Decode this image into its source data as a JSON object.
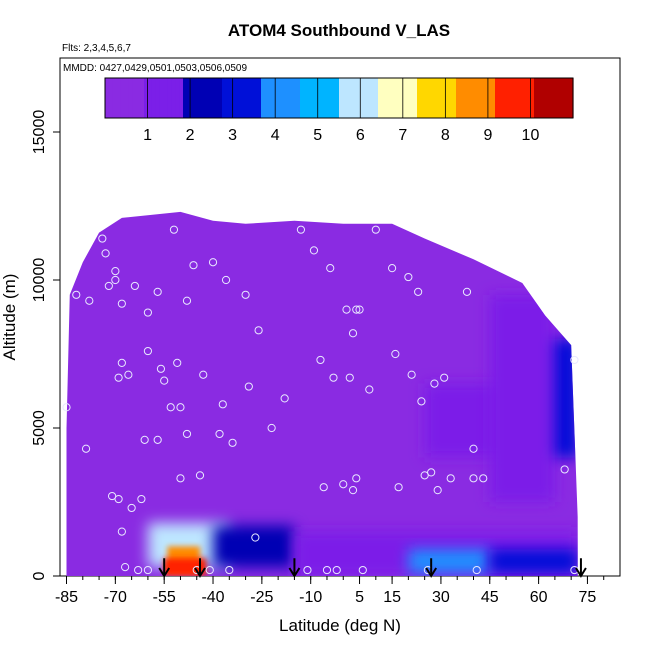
{
  "chart_data": {
    "type": "heatmap",
    "title": "ATOM4 Southbound V_LAS",
    "subtitle_flights": "Flts: 2,3,4,5,6,7",
    "subtitle_dates": "MMDD: 0427,0429,0501,0503,0506,0509",
    "xlabel": "Latitude (deg N)",
    "ylabel": "Altitude (m)",
    "xlim": [
      -87,
      85
    ],
    "ylim": [
      0,
      17500
    ],
    "x_ticks": [
      -85,
      -70,
      -55,
      -40,
      -25,
      -10,
      5,
      15,
      30,
      45,
      60,
      75
    ],
    "x_tick_labels": [
      "-85",
      "-70",
      "-55",
      "-40",
      "-25",
      "-10",
      "5",
      "15",
      "30",
      "45",
      "60",
      "75"
    ],
    "y_ticks": [
      0,
      5000,
      10000,
      15000
    ],
    "y_tick_labels": [
      "0",
      "5000",
      "10000",
      "15000"
    ],
    "colorbar": {
      "min": 0,
      "max": 11,
      "ticks": [
        1,
        2,
        3,
        4,
        5,
        6,
        7,
        8,
        9,
        10
      ],
      "tick_labels": [
        "1",
        "2",
        "3",
        "4",
        "5",
        "6",
        "7",
        "8",
        "9",
        "10"
      ],
      "colors": [
        "#8a2be2",
        "#7b1fe8",
        "#0000b4",
        "#0010d8",
        "#1e90ff",
        "#00b4ff",
        "#bde6ff",
        "#ffffc0",
        "#ffd700",
        "#ff8c00",
        "#ff2000",
        "#b00000"
      ],
      "position": "top"
    },
    "envelope": [
      [
        -85,
        5000
      ],
      [
        -84,
        9500
      ],
      [
        -80,
        10600
      ],
      [
        -75,
        11600
      ],
      [
        -68,
        12100
      ],
      [
        -50,
        12300
      ],
      [
        -40,
        12000
      ],
      [
        -30,
        11900
      ],
      [
        -15,
        12000
      ],
      [
        0,
        11900
      ],
      [
        15,
        11900
      ],
      [
        25,
        11400
      ],
      [
        40,
        10700
      ],
      [
        55,
        9900
      ],
      [
        62,
        8800
      ],
      [
        70,
        7800
      ],
      [
        72,
        2000
      ]
    ],
    "regions": [
      {
        "description": "background",
        "value": 0.3
      },
      {
        "lat_range": [
          -60,
          -35
        ],
        "alt_range": [
          300,
          1800
        ],
        "value": 5.5
      },
      {
        "lat_range": [
          -54,
          -44
        ],
        "alt_range": [
          100,
          1000
        ],
        "value": 8.5
      },
      {
        "lat_range": [
          -55,
          -42
        ],
        "alt_range": [
          0,
          600
        ],
        "value": 9.6
      },
      {
        "lat_range": [
          -40,
          -15
        ],
        "alt_range": [
          300,
          1700
        ],
        "value": 2.0
      },
      {
        "lat_range": [
          -15,
          72
        ],
        "alt_range": [
          0,
          1500
        ],
        "value": 1.5
      },
      {
        "lat_range": [
          20,
          45
        ],
        "alt_range": [
          100,
          900
        ],
        "value": 3.8
      },
      {
        "lat_range": [
          45,
          72
        ],
        "alt_range": [
          100,
          900
        ],
        "value": 3.5
      },
      {
        "lat_range": [
          25,
          60
        ],
        "alt_range": [
          4000,
          6500
        ],
        "value": 1.8
      },
      {
        "lat_range": [
          55,
          72
        ],
        "alt_range": [
          4000,
          8000
        ],
        "value": 3.2
      },
      {
        "lat_range": [
          45,
          65
        ],
        "alt_range": [
          2500,
          9500
        ],
        "value": 1.4
      }
    ],
    "points": [
      [
        -85,
        5700
      ],
      [
        -82,
        9500
      ],
      [
        -79,
        4300
      ],
      [
        -78,
        9300
      ],
      [
        -74,
        11400
      ],
      [
        -73,
        10900
      ],
      [
        -72,
        9800
      ],
      [
        -71,
        2700
      ],
      [
        -70,
        10300
      ],
      [
        -70,
        10000
      ],
      [
        -69,
        2600
      ],
      [
        -69,
        6700
      ],
      [
        -68,
        1500
      ],
      [
        -68,
        9200
      ],
      [
        -68,
        7200
      ],
      [
        -67,
        300
      ],
      [
        -66,
        6800
      ],
      [
        -65,
        2300
      ],
      [
        -64,
        9800
      ],
      [
        -63,
        200
      ],
      [
        -62,
        2600
      ],
      [
        -61,
        4600
      ],
      [
        -60,
        7600
      ],
      [
        -60,
        8900
      ],
      [
        -60,
        200
      ],
      [
        -57,
        9600
      ],
      [
        -57,
        4600
      ],
      [
        -56,
        7000
      ],
      [
        -55,
        6600
      ],
      [
        -53,
        5700
      ],
      [
        -52,
        11700
      ],
      [
        -51,
        7200
      ],
      [
        -50,
        5700
      ],
      [
        -50,
        3300
      ],
      [
        -48,
        4800
      ],
      [
        -48,
        9300
      ],
      [
        -46,
        10500
      ],
      [
        -45,
        200
      ],
      [
        -44,
        3400
      ],
      [
        -43,
        6800
      ],
      [
        -41,
        200
      ],
      [
        -40,
        10600
      ],
      [
        -38,
        4800
      ],
      [
        -37,
        5800
      ],
      [
        -36,
        10000
      ],
      [
        -35,
        200
      ],
      [
        -34,
        4500
      ],
      [
        -30,
        9500
      ],
      [
        -29,
        6400
      ],
      [
        -27,
        1300
      ],
      [
        -26,
        8300
      ],
      [
        -22,
        5000
      ],
      [
        -18,
        6000
      ],
      [
        -13,
        11700
      ],
      [
        -11,
        200
      ],
      [
        -9,
        11000
      ],
      [
        -7,
        7300
      ],
      [
        -6,
        3000
      ],
      [
        -5,
        200
      ],
      [
        -4,
        10400
      ],
      [
        -3,
        6700
      ],
      [
        -2,
        200
      ],
      [
        0,
        3100
      ],
      [
        1,
        9000
      ],
      [
        2,
        6700
      ],
      [
        3,
        2900
      ],
      [
        3,
        8200
      ],
      [
        4,
        9000
      ],
      [
        4,
        3300
      ],
      [
        5,
        9000
      ],
      [
        6,
        200
      ],
      [
        8,
        6300
      ],
      [
        10,
        11700
      ],
      [
        15,
        10400
      ],
      [
        16,
        7500
      ],
      [
        17,
        3000
      ],
      [
        20,
        10100
      ],
      [
        21,
        6800
      ],
      [
        23,
        9600
      ],
      [
        24,
        5900
      ],
      [
        25,
        3400
      ],
      [
        26,
        200
      ],
      [
        27,
        3500
      ],
      [
        28,
        6500
      ],
      [
        29,
        2900
      ],
      [
        31,
        6700
      ],
      [
        33,
        3300
      ],
      [
        38,
        9600
      ],
      [
        40,
        4300
      ],
      [
        40,
        3300
      ],
      [
        41,
        200
      ],
      [
        43,
        3300
      ],
      [
        68,
        3600
      ],
      [
        71,
        7300
      ],
      [
        71,
        200
      ]
    ],
    "arrows": [
      -55,
      -44,
      -15,
      27,
      73
    ]
  }
}
